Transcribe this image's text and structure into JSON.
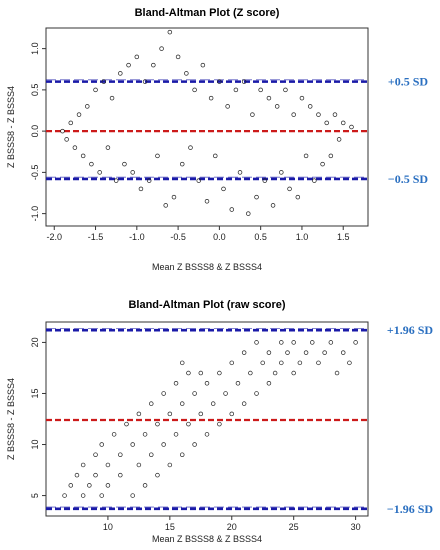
{
  "chart_data": [
    {
      "type": "scatter",
      "title": "Bland-Altman Plot (Z score)",
      "xlabel": "Mean Z BSSS8 & Z BSSS4",
      "ylabel": "Z BSSS8 - Z BSSS4",
      "xlim": [
        -2.1,
        1.8
      ],
      "ylim": [
        -1.15,
        1.25
      ],
      "xticks": [
        -2.0,
        -1.5,
        -1.0,
        -0.5,
        0.0,
        0.5,
        1.0,
        1.5
      ],
      "xtick_labels": [
        "-2.0",
        "-1.5",
        "-1.0",
        "-0.5",
        "0.0",
        "0.5",
        "1.0",
        "1.5"
      ],
      "yticks": [
        -1.0,
        -0.5,
        0.0,
        0.5,
        1.0
      ],
      "ytick_labels": [
        "-1.0",
        "-0.5",
        "0.0",
        "0.5",
        "1.0"
      ],
      "reference_lines": [
        {
          "value": 0.6,
          "color": "#1a1aa8",
          "style": "dashed",
          "label": "+0.5 SD"
        },
        {
          "value": 0.0,
          "color": "#cc1a1a",
          "style": "dashed",
          "label": ""
        },
        {
          "value": -0.58,
          "color": "#1a1aa8",
          "style": "dashed",
          "label": "−0.5 SD"
        }
      ],
      "points": [
        [
          -1.9,
          0.0
        ],
        [
          -1.85,
          -0.1
        ],
        [
          -1.8,
          0.1
        ],
        [
          -1.75,
          -0.2
        ],
        [
          -1.7,
          0.2
        ],
        [
          -1.65,
          -0.3
        ],
        [
          -1.6,
          0.3
        ],
        [
          -1.55,
          -0.4
        ],
        [
          -1.5,
          0.5
        ],
        [
          -1.45,
          -0.5
        ],
        [
          -1.4,
          0.6
        ],
        [
          -1.35,
          -0.2
        ],
        [
          -1.3,
          0.4
        ],
        [
          -1.25,
          -0.6
        ],
        [
          -1.2,
          0.7
        ],
        [
          -1.15,
          -0.4
        ],
        [
          -1.1,
          0.8
        ],
        [
          -1.05,
          -0.5
        ],
        [
          -1.0,
          0.9
        ],
        [
          -0.95,
          -0.7
        ],
        [
          -0.9,
          0.6
        ],
        [
          -0.85,
          -0.6
        ],
        [
          -0.8,
          0.8
        ],
        [
          -0.75,
          -0.3
        ],
        [
          -0.7,
          1.0
        ],
        [
          -0.65,
          -0.9
        ],
        [
          -0.6,
          1.2
        ],
        [
          -0.55,
          -0.8
        ],
        [
          -0.5,
          0.9
        ],
        [
          -0.45,
          -0.4
        ],
        [
          -0.4,
          0.7
        ],
        [
          -0.35,
          -0.2
        ],
        [
          -0.3,
          0.5
        ],
        [
          -0.25,
          -0.6
        ],
        [
          -0.2,
          0.8
        ],
        [
          -0.15,
          -0.85
        ],
        [
          -0.1,
          0.4
        ],
        [
          -0.05,
          -0.3
        ],
        [
          0.0,
          0.6
        ],
        [
          0.05,
          -0.7
        ],
        [
          0.1,
          0.3
        ],
        [
          0.15,
          -0.95
        ],
        [
          0.2,
          0.5
        ],
        [
          0.25,
          -0.5
        ],
        [
          0.3,
          0.6
        ],
        [
          0.35,
          -1.0
        ],
        [
          0.4,
          0.2
        ],
        [
          0.45,
          -0.8
        ],
        [
          0.5,
          0.5
        ],
        [
          0.55,
          -0.6
        ],
        [
          0.6,
          0.4
        ],
        [
          0.65,
          -0.9
        ],
        [
          0.7,
          0.3
        ],
        [
          0.75,
          -0.5
        ],
        [
          0.8,
          0.5
        ],
        [
          0.85,
          -0.7
        ],
        [
          0.9,
          0.2
        ],
        [
          0.95,
          -0.8
        ],
        [
          1.0,
          0.4
        ],
        [
          1.05,
          -0.3
        ],
        [
          1.1,
          0.3
        ],
        [
          1.15,
          -0.6
        ],
        [
          1.2,
          0.2
        ],
        [
          1.25,
          -0.4
        ],
        [
          1.3,
          0.1
        ],
        [
          1.35,
          -0.3
        ],
        [
          1.4,
          0.2
        ],
        [
          1.45,
          -0.1
        ],
        [
          1.5,
          0.1
        ],
        [
          1.6,
          0.05
        ]
      ],
      "outer_labels": [
        "+0.5 SD",
        "−0.5 SD"
      ]
    },
    {
      "type": "scatter",
      "title": "Bland-Altman Plot (raw score)",
      "xlabel": "Mean Z BSSS8 & Z BSSS4",
      "ylabel": "Z BSSS8 - Z BSSS4",
      "xlim": [
        5,
        31
      ],
      "ylim": [
        3,
        22
      ],
      "xticks": [
        10,
        15,
        20,
        25,
        30
      ],
      "xtick_labels": [
        "10",
        "15",
        "20",
        "25",
        "30"
      ],
      "yticks": [
        5,
        10,
        15,
        20
      ],
      "ytick_labels": [
        "5",
        "10",
        "15",
        "20"
      ],
      "reference_lines": [
        {
          "value": 21.2,
          "color": "#1a1aa8",
          "style": "dashed",
          "label": "+1.96 SD"
        },
        {
          "value": 12.4,
          "color": "#cc1a1a",
          "style": "dashed",
          "label": ""
        },
        {
          "value": 3.7,
          "color": "#1a1aa8",
          "style": "dashed",
          "label": "−1.96 SD"
        }
      ],
      "points": [
        [
          6.5,
          5
        ],
        [
          7,
          6
        ],
        [
          7.5,
          7
        ],
        [
          8,
          5
        ],
        [
          8,
          8
        ],
        [
          8.5,
          6
        ],
        [
          9,
          7
        ],
        [
          9,
          9
        ],
        [
          9.5,
          5
        ],
        [
          9.5,
          10
        ],
        [
          10,
          6
        ],
        [
          10,
          8
        ],
        [
          10.5,
          11
        ],
        [
          11,
          7
        ],
        [
          11,
          9
        ],
        [
          11.5,
          12
        ],
        [
          12,
          5
        ],
        [
          12,
          10
        ],
        [
          12.5,
          8
        ],
        [
          12.5,
          13
        ],
        [
          13,
          6
        ],
        [
          13,
          11
        ],
        [
          13.5,
          9
        ],
        [
          13.5,
          14
        ],
        [
          14,
          7
        ],
        [
          14,
          12
        ],
        [
          14.5,
          10
        ],
        [
          14.5,
          15
        ],
        [
          15,
          8
        ],
        [
          15,
          13
        ],
        [
          15.5,
          11
        ],
        [
          15.5,
          16
        ],
        [
          16,
          9
        ],
        [
          16,
          14
        ],
        [
          16,
          18
        ],
        [
          16.5,
          12
        ],
        [
          16.5,
          17
        ],
        [
          17,
          10
        ],
        [
          17,
          15
        ],
        [
          17.5,
          13
        ],
        [
          17.5,
          17
        ],
        [
          18,
          11
        ],
        [
          18,
          16
        ],
        [
          18.5,
          14
        ],
        [
          19,
          12
        ],
        [
          19,
          17
        ],
        [
          19.5,
          15
        ],
        [
          20,
          13
        ],
        [
          20,
          18
        ],
        [
          20.5,
          16
        ],
        [
          21,
          14
        ],
        [
          21,
          19
        ],
        [
          21.5,
          17
        ],
        [
          22,
          15
        ],
        [
          22,
          20
        ],
        [
          22.5,
          18
        ],
        [
          23,
          16
        ],
        [
          23,
          19
        ],
        [
          23.5,
          17
        ],
        [
          24,
          18
        ],
        [
          24,
          20
        ],
        [
          24.5,
          19
        ],
        [
          25,
          17
        ],
        [
          25,
          20
        ],
        [
          25.5,
          18
        ],
        [
          26,
          19
        ],
        [
          26.5,
          20
        ],
        [
          27,
          18
        ],
        [
          27.5,
          19
        ],
        [
          28,
          20
        ],
        [
          28.5,
          17
        ],
        [
          29,
          19
        ],
        [
          29.5,
          18
        ],
        [
          30,
          20
        ]
      ],
      "outer_labels": [
        "+1.96 SD",
        "−1.96 SD"
      ]
    }
  ]
}
